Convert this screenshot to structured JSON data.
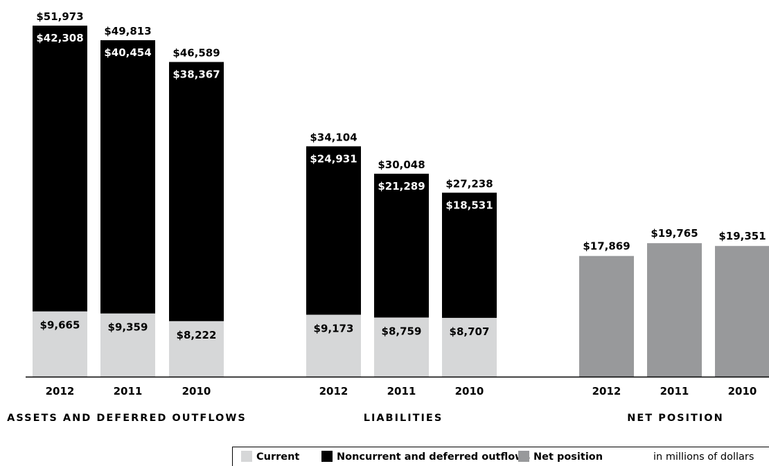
{
  "chart_data": {
    "type": "bar",
    "stacked": true,
    "unit_note": "in millions of dollars",
    "ylim": [
      0,
      54000
    ],
    "colors": {
      "current": "#d6d7d8",
      "noncurrent": "#000000",
      "net_position": "#98999b",
      "axis": "#000000"
    },
    "legend": {
      "placement": "bottom-right",
      "items": [
        {
          "key": "current",
          "label": "Current"
        },
        {
          "key": "noncurrent",
          "label": "Noncurrent and deferred outflows"
        },
        {
          "key": "net_position",
          "label": "Net position"
        }
      ]
    },
    "groups": [
      {
        "title": "ASSETS AND DEFERRED OUTFLOWS",
        "bars": [
          {
            "year": "2012",
            "current": 9665,
            "noncurrent": 42308,
            "total": 51973,
            "current_label": "$9,665",
            "noncurrent_label": "$42,308",
            "total_label": "$51,973"
          },
          {
            "year": "2011",
            "current": 9359,
            "noncurrent": 40454,
            "total": 49813,
            "current_label": "$9,359",
            "noncurrent_label": "$40,454",
            "total_label": "$49,813"
          },
          {
            "year": "2010",
            "current": 8222,
            "noncurrent": 38367,
            "total": 46589,
            "current_label": "$8,222",
            "noncurrent_label": "$38,367",
            "total_label": "$46,589"
          }
        ]
      },
      {
        "title": "LIABILITIES",
        "bars": [
          {
            "year": "2012",
            "current": 9173,
            "noncurrent": 24931,
            "total": 34104,
            "current_label": "$9,173",
            "noncurrent_label": "$24,931",
            "total_label": "$34,104"
          },
          {
            "year": "2011",
            "current": 8759,
            "noncurrent": 21289,
            "total": 30048,
            "current_label": "$8,759",
            "noncurrent_label": "$21,289",
            "total_label": "$30,048"
          },
          {
            "year": "2010",
            "current": 8707,
            "noncurrent": 18531,
            "total": 27238,
            "current_label": "$8,707",
            "noncurrent_label": "$18,531",
            "total_label": "$27,238"
          }
        ]
      },
      {
        "title": "NET POSITION",
        "bars": [
          {
            "year": "2012",
            "net_position": 17869,
            "total": 17869,
            "total_label": "$17,869"
          },
          {
            "year": "2011",
            "net_position": 19765,
            "total": 19765,
            "total_label": "$19,765"
          },
          {
            "year": "2010",
            "net_position": 19351,
            "total": 19351,
            "total_label": "$19,351"
          }
        ]
      }
    ]
  }
}
